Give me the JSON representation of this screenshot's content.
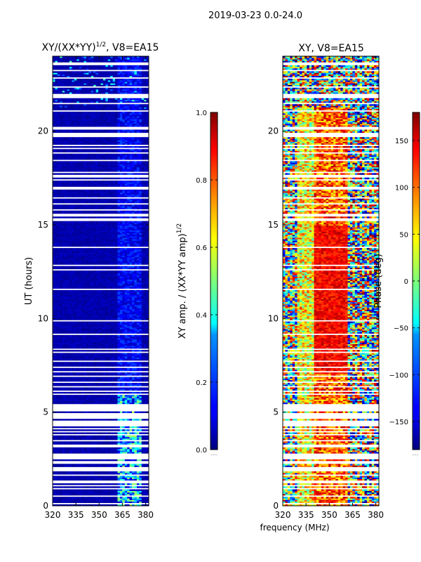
{
  "figure": {
    "suptitle": "2019-03-23 0.0-24.0",
    "shared_xlabel": "frequency (MHz)"
  },
  "chart_data": [
    {
      "type": "heatmap",
      "title_text": "XY/(XX*YY)",
      "title_exp": "1/2",
      "title_suffix": ", V8=EA15",
      "xlabel": "",
      "ylabel": "UT (hours)",
      "xlim": [
        320,
        382
      ],
      "ylim": [
        0,
        24
      ],
      "xticks": [
        320,
        335,
        350,
        365,
        380
      ],
      "yticks": [
        0,
        5,
        10,
        15,
        20
      ],
      "value_range": [
        0.0,
        1.0
      ],
      "colorbar": {
        "label_text": "XY amp. / (XX*YY amp)",
        "label_exp": "1/2",
        "ticks": [
          0.0,
          0.2,
          0.4,
          0.6,
          0.8,
          1.0
        ],
        "tick_labels": [
          "0.0",
          "0.2",
          "0.4",
          "0.6",
          "0.8",
          "1.0"
        ],
        "extra_label": "......"
      },
      "colormap": "jet"
    },
    {
      "type": "heatmap",
      "title_text": "XY, V8=EA15",
      "xlabel": "frequency (MHz)",
      "ylabel": "",
      "xlim": [
        320,
        382
      ],
      "ylim": [
        0,
        24
      ],
      "xticks": [
        320,
        335,
        350,
        365,
        380
      ],
      "yticks": [
        0,
        5,
        10,
        15,
        20
      ],
      "value_range": [
        -180,
        180
      ],
      "colorbar": {
        "label_text": "Phase (deg)",
        "ticks": [
          -150,
          -100,
          -50,
          0,
          50,
          100,
          150
        ],
        "tick_labels": [
          "−150",
          "−100",
          "−50",
          "0",
          "50",
          "100",
          "150"
        ],
        "extra_label": "......"
      },
      "colormap": "jet"
    }
  ],
  "colors": {
    "jet": [
      "#00007f",
      "#0000ff",
      "#007fff",
      "#00ffff",
      "#7fff7f",
      "#ffff00",
      "#ff7f00",
      "#ff0000",
      "#7f0000"
    ],
    "flagged": "#ffffff",
    "frame": "#000000"
  }
}
